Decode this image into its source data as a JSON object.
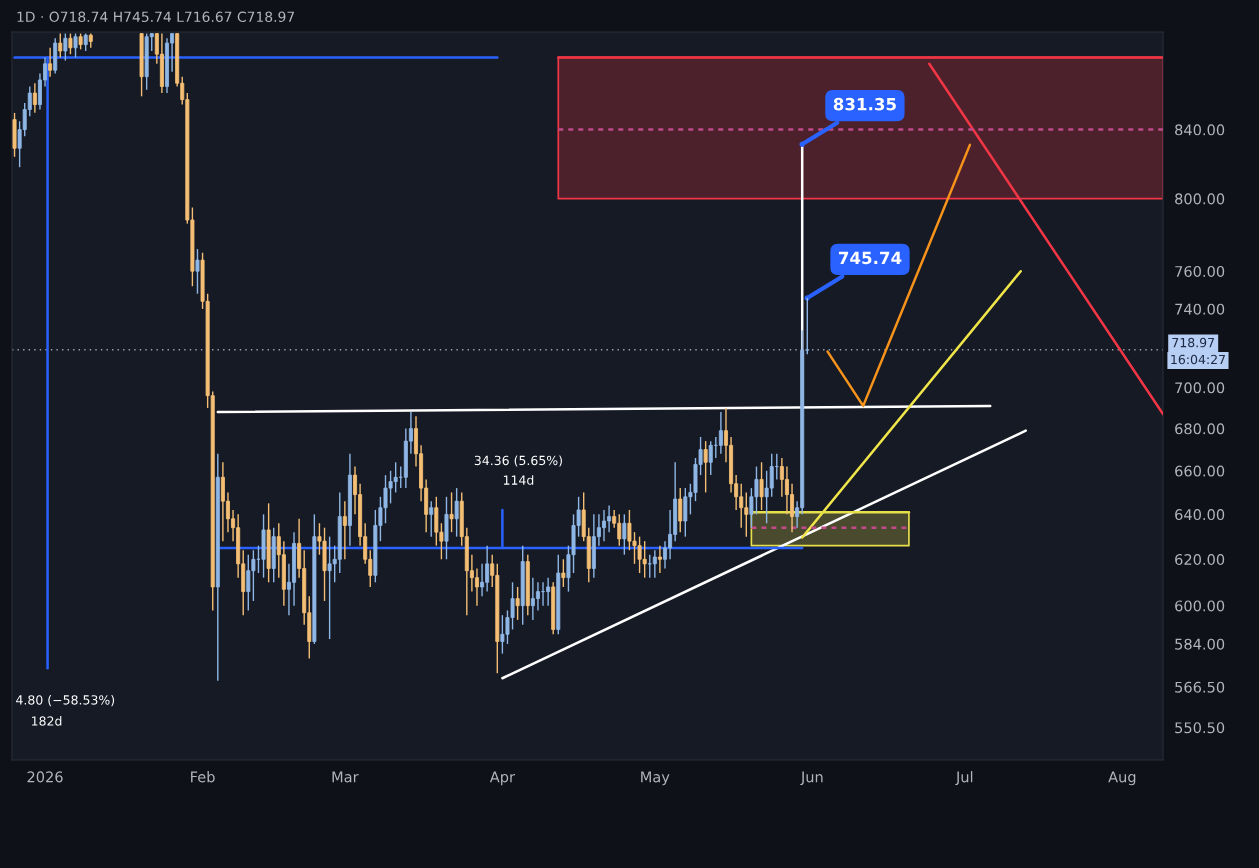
{
  "chart_data": {
    "type": "candlestick",
    "subtitle": "1D · O718.74 H745.74 L716.67 C718.97",
    "log": true,
    "grid": false,
    "xlim": [
      "2025-12-25T12:00",
      "2026-08-09"
    ],
    "xticks": [
      {
        "value": "2026-01-01",
        "label": "2026"
      },
      {
        "value": "2026-02-01",
        "label": "Feb"
      },
      {
        "value": "2026-03-01",
        "label": "Mar"
      },
      {
        "value": "2026-04-01",
        "label": "Apr"
      },
      {
        "value": "2026-05-01",
        "label": "May"
      },
      {
        "value": "2026-06-01",
        "label": "Jun"
      },
      {
        "value": "2026-07-01",
        "label": "Jul"
      },
      {
        "value": "2026-08-01",
        "label": "Aug"
      }
    ],
    "ylim": [
      538,
      900
    ],
    "yticks": [
      {
        "value": 550.5,
        "label": "550.50"
      },
      {
        "value": 566.5,
        "label": "566.50"
      },
      {
        "value": 584,
        "label": "584.00"
      },
      {
        "value": 600,
        "label": "600.00"
      },
      {
        "value": 620,
        "label": "620.00"
      },
      {
        "value": 640,
        "label": "640.00"
      },
      {
        "value": 660,
        "label": "660.00"
      },
      {
        "value": 680,
        "label": "680.00"
      },
      {
        "value": 700,
        "label": "700.00"
      },
      {
        "value": 740,
        "label": "740.00"
      },
      {
        "value": 760,
        "label": "760.00"
      },
      {
        "value": 800,
        "label": "800.00"
      },
      {
        "value": 840,
        "label": "840.00"
      }
    ],
    "x": [
      "2025-12-26",
      "2025-12-27",
      "2025-12-28",
      "2025-12-29",
      "2025-12-30",
      "2025-12-31",
      "2026-01-01",
      "2026-01-02",
      "2026-01-03",
      "2026-01-04",
      "2026-01-05",
      "2026-01-06",
      "2026-01-07",
      "2026-01-08",
      "2026-01-09",
      "2026-01-10",
      "2026-01-20",
      "2026-01-21",
      "2026-01-22",
      "2026-01-23",
      "2026-01-24",
      "2026-01-25",
      "2026-01-26",
      "2026-01-27",
      "2026-01-28",
      "2026-01-29",
      "2026-01-30",
      "2026-01-31",
      "2026-02-01",
      "2026-02-02",
      "2026-02-03",
      "2026-02-04",
      "2026-02-05",
      "2026-02-06",
      "2026-02-07",
      "2026-02-08",
      "2026-02-09",
      "2026-02-10",
      "2026-02-11",
      "2026-02-12",
      "2026-02-13",
      "2026-02-14",
      "2026-02-15",
      "2026-02-16",
      "2026-02-17",
      "2026-02-18",
      "2026-02-19",
      "2026-02-20",
      "2026-02-21",
      "2026-02-22",
      "2026-02-23",
      "2026-02-24",
      "2026-02-25",
      "2026-02-26",
      "2026-02-27",
      "2026-02-28",
      "2026-03-01",
      "2026-03-02",
      "2026-03-03",
      "2026-03-04",
      "2026-03-05",
      "2026-03-06",
      "2026-03-07",
      "2026-03-08",
      "2026-03-09",
      "2026-03-10",
      "2026-03-11",
      "2026-03-12",
      "2026-03-13",
      "2026-03-14",
      "2026-03-15",
      "2026-03-16",
      "2026-03-17",
      "2026-03-18",
      "2026-03-19",
      "2026-03-20",
      "2026-03-21",
      "2026-03-22",
      "2026-03-23",
      "2026-03-24",
      "2026-03-25",
      "2026-03-26",
      "2026-03-27",
      "2026-03-28",
      "2026-03-29",
      "2026-03-30",
      "2026-03-31",
      "2026-04-01",
      "2026-04-02",
      "2026-04-03",
      "2026-04-04",
      "2026-04-05",
      "2026-04-06",
      "2026-04-07",
      "2026-04-08",
      "2026-04-09",
      "2026-04-10",
      "2026-04-11",
      "2026-04-12",
      "2026-04-13",
      "2026-04-14",
      "2026-04-15",
      "2026-04-16",
      "2026-04-17",
      "2026-04-18",
      "2026-04-19",
      "2026-04-20",
      "2026-04-21",
      "2026-04-22",
      "2026-04-23",
      "2026-04-24",
      "2026-04-25",
      "2026-04-26",
      "2026-04-27",
      "2026-04-28",
      "2026-04-29",
      "2026-04-30",
      "2026-05-01",
      "2026-05-02",
      "2026-05-03",
      "2026-05-04",
      "2026-05-05",
      "2026-05-06",
      "2026-05-07",
      "2026-05-08",
      "2026-05-09",
      "2026-05-10",
      "2026-05-11",
      "2026-05-12",
      "2026-05-13",
      "2026-05-14",
      "2026-05-15",
      "2026-05-16",
      "2026-05-17",
      "2026-05-18",
      "2026-05-19",
      "2026-05-20",
      "2026-05-21",
      "2026-05-22",
      "2026-05-23",
      "2026-05-24",
      "2026-05-25",
      "2026-05-26",
      "2026-05-27",
      "2026-05-28",
      "2026-05-29",
      "2026-05-30",
      "2026-05-31"
    ],
    "ohlc": [
      [
        846,
        850,
        824,
        829
      ],
      [
        829,
        845,
        818,
        840
      ],
      [
        840,
        856,
        836,
        852
      ],
      [
        852,
        866,
        848,
        862
      ],
      [
        862,
        868,
        850,
        855
      ],
      [
        855,
        874,
        852,
        870
      ],
      [
        870,
        884,
        866,
        880
      ],
      [
        880,
        890,
        872,
        876
      ],
      [
        876,
        896,
        874,
        893
      ],
      [
        893,
        899,
        884,
        888
      ],
      [
        888,
        899,
        882,
        896
      ],
      [
        896,
        899,
        886,
        890
      ],
      [
        890,
        899,
        884,
        897
      ],
      [
        897,
        899,
        889,
        892
      ],
      [
        892,
        899,
        888,
        898
      ],
      [
        898,
        899,
        890,
        894
      ],
      [
        899,
        899,
        860,
        872
      ],
      [
        872,
        899,
        864,
        897
      ],
      [
        897,
        899,
        888,
        899
      ],
      [
        899,
        899,
        880,
        886
      ],
      [
        886,
        899,
        862,
        866
      ],
      [
        866,
        896,
        862,
        893
      ],
      [
        893,
        899,
        875,
        899
      ],
      [
        899,
        899,
        866,
        868
      ],
      [
        868,
        872,
        855,
        858
      ],
      [
        858,
        862,
        786,
        788
      ],
      [
        788,
        795,
        752,
        760
      ],
      [
        760,
        772,
        748,
        766
      ],
      [
        766,
        770,
        740,
        744
      ],
      [
        744,
        748,
        690,
        696
      ],
      [
        696,
        698,
        598,
        608
      ],
      [
        608,
        668,
        569,
        657
      ],
      [
        657,
        664,
        628,
        646
      ],
      [
        646,
        650,
        632,
        638
      ],
      [
        638,
        642,
        628,
        634
      ],
      [
        634,
        640,
        612,
        618
      ],
      [
        618,
        624,
        596,
        606
      ],
      [
        606,
        622,
        598,
        615
      ],
      [
        615,
        624,
        602,
        620
      ],
      [
        620,
        626,
        614,
        620
      ],
      [
        620,
        640,
        612,
        633
      ],
      [
        633,
        645,
        610,
        616
      ],
      [
        616,
        634,
        610,
        630
      ],
      [
        630,
        636,
        612,
        622
      ],
      [
        622,
        628,
        600,
        607
      ],
      [
        607,
        618,
        596,
        610
      ],
      [
        610,
        632,
        600,
        627
      ],
      [
        627,
        638,
        612,
        616
      ],
      [
        616,
        624,
        592,
        597
      ],
      [
        597,
        604,
        578,
        585
      ],
      [
        585,
        640,
        584,
        630
      ],
      [
        630,
        636,
        622,
        628
      ],
      [
        628,
        634,
        602,
        615
      ],
      [
        615,
        630,
        586,
        618
      ],
      [
        618,
        626,
        610,
        620
      ],
      [
        620,
        650,
        614,
        639
      ],
      [
        639,
        646,
        620,
        635
      ],
      [
        635,
        668,
        626,
        658
      ],
      [
        658,
        662,
        640,
        649
      ],
      [
        649,
        654,
        626,
        630
      ],
      [
        630,
        636,
        618,
        620
      ],
      [
        620,
        624,
        608,
        613
      ],
      [
        613,
        642,
        610,
        635
      ],
      [
        635,
        648,
        628,
        643
      ],
      [
        643,
        658,
        636,
        652
      ],
      [
        652,
        660,
        645,
        655
      ],
      [
        655,
        664,
        650,
        657
      ],
      [
        657,
        662,
        652,
        657
      ],
      [
        657,
        680,
        652,
        674
      ],
      [
        674,
        688,
        668,
        680
      ],
      [
        680,
        686,
        662,
        668
      ],
      [
        668,
        672,
        646,
        652
      ],
      [
        652,
        656,
        632,
        640
      ],
      [
        640,
        646,
        630,
        643
      ],
      [
        643,
        648,
        626,
        632
      ],
      [
        632,
        636,
        620,
        628
      ],
      [
        628,
        648,
        620,
        640
      ],
      [
        640,
        650,
        632,
        638
      ],
      [
        638,
        652,
        630,
        646
      ],
      [
        646,
        650,
        626,
        630
      ],
      [
        630,
        634,
        596,
        615
      ],
      [
        615,
        622,
        606,
        612
      ],
      [
        612,
        616,
        600,
        608
      ],
      [
        608,
        618,
        604,
        610
      ],
      [
        610,
        626,
        606,
        618
      ],
      [
        618,
        622,
        608,
        613
      ],
      [
        613,
        618,
        572,
        585
      ],
      [
        585,
        596,
        580,
        588
      ],
      [
        588,
        598,
        584,
        595
      ],
      [
        595,
        610,
        590,
        603
      ],
      [
        603,
        608,
        594,
        600
      ],
      [
        600,
        626,
        592,
        619
      ],
      [
        619,
        622,
        596,
        600
      ],
      [
        600,
        612,
        594,
        603
      ],
      [
        603,
        610,
        598,
        606
      ],
      [
        606,
        610,
        600,
        606
      ],
      [
        606,
        612,
        600,
        608
      ],
      [
        608,
        610,
        588,
        590
      ],
      [
        590,
        622,
        588,
        614
      ],
      [
        614,
        620,
        608,
        612
      ],
      [
        612,
        626,
        606,
        622
      ],
      [
        622,
        640,
        614,
        635
      ],
      [
        635,
        648,
        630,
        642
      ],
      [
        642,
        650,
        628,
        630
      ],
      [
        630,
        634,
        610,
        616
      ],
      [
        616,
        640,
        612,
        630
      ],
      [
        630,
        640,
        626,
        634
      ],
      [
        634,
        642,
        628,
        637
      ],
      [
        637,
        644,
        632,
        639
      ],
      [
        639,
        642,
        634,
        636
      ],
      [
        636,
        640,
        626,
        629
      ],
      [
        629,
        640,
        622,
        636
      ],
      [
        636,
        642,
        624,
        628
      ],
      [
        628,
        632,
        618,
        626
      ],
      [
        626,
        630,
        614,
        620
      ],
      [
        620,
        628,
        612,
        618
      ],
      [
        618,
        622,
        612,
        618
      ],
      [
        618,
        624,
        612,
        621
      ],
      [
        621,
        626,
        614,
        620
      ],
      [
        620,
        628,
        616,
        625
      ],
      [
        625,
        642,
        620,
        631
      ],
      [
        631,
        664,
        628,
        647
      ],
      [
        647,
        652,
        632,
        637
      ],
      [
        637,
        652,
        630,
        648
      ],
      [
        648,
        654,
        640,
        650
      ],
      [
        650,
        666,
        646,
        663
      ],
      [
        663,
        676,
        658,
        670
      ],
      [
        670,
        674,
        650,
        664
      ],
      [
        664,
        674,
        658,
        672
      ],
      [
        672,
        676,
        666,
        672
      ],
      [
        672,
        688,
        668,
        679
      ],
      [
        679,
        690,
        664,
        672
      ],
      [
        672,
        676,
        650,
        654
      ],
      [
        654,
        658,
        642,
        648
      ],
      [
        648,
        654,
        634,
        643
      ],
      [
        643,
        650,
        630,
        640
      ],
      [
        640,
        652,
        634,
        648
      ],
      [
        648,
        662,
        640,
        656
      ],
      [
        656,
        664,
        642,
        648
      ],
      [
        648,
        660,
        636,
        652
      ],
      [
        652,
        668,
        648,
        662
      ],
      [
        662,
        668,
        656,
        662
      ],
      [
        662,
        666,
        648,
        656
      ],
      [
        656,
        662,
        640,
        649
      ],
      [
        649,
        654,
        632,
        639
      ],
      [
        639,
        646,
        634,
        643
      ],
      [
        643,
        729,
        640,
        718.74
      ],
      [
        718.74,
        745.74,
        716.67,
        718.97
      ]
    ],
    "series": [
      {
        "type": "line",
        "color": "#ffffff",
        "x": [
          "2026-02-04",
          "2026-07-06"
        ],
        "values": [
          688,
          691
        ]
      },
      {
        "type": "line",
        "color": "#ffffff",
        "x": [
          "2026-04-01",
          "2026-07-13"
        ],
        "values": [
          570,
          679
        ]
      },
      {
        "type": "line",
        "color": "#f0e64a",
        "x": [
          "2026-05-30",
          "2026-07-12"
        ],
        "values": [
          629.6,
          760
        ]
      },
      {
        "type": "line",
        "color": "#f7931a",
        "x": [
          "2026-06-04",
          "2026-06-11",
          "2026-07-02"
        ],
        "values": [
          718,
          691,
          831
        ]
      },
      {
        "type": "line",
        "color": "#f23645",
        "x": [
          "2026-06-24",
          "2026-08-09"
        ],
        "values": [
          880,
          687
        ]
      },
      {
        "type": "line",
        "color": "#ffffff",
        "x": [
          "2026-05-30",
          "2026-05-30"
        ],
        "values": [
          690,
          831.35
        ]
      },
      {
        "type": "line",
        "color": "#2962ff",
        "x": [
          "2026-02-04",
          "2026-05-30"
        ],
        "values": [
          625,
          625
        ]
      },
      {
        "type": "line",
        "color": "#2962ff",
        "x": [
          "2026-04-01",
          "2026-04-01"
        ],
        "values": [
          625,
          642
        ]
      },
      {
        "type": "line",
        "color": "#2962ff",
        "x": [
          "2026-01-01T12:00",
          "2026-01-01T12:00"
        ],
        "values": [
          884,
          574
        ]
      },
      {
        "type": "line",
        "color": "#2962ff",
        "x": [
          "2025-12-26",
          "2026-03-31"
        ],
        "values": [
          884,
          884
        ]
      },
      {
        "type": "line",
        "color": "#f23645",
        "x": [
          "2026-04-12",
          "2026-08-09"
        ],
        "values": [
          884,
          884
        ],
        "lower": [
          800,
          800
        ],
        "upper": [
          884,
          884
        ]
      },
      {
        "type": "line",
        "color": "#e8e04a",
        "x": [
          "2026-05-20",
          "2026-06-20"
        ],
        "values": [
          641,
          641
        ],
        "lower": [
          626,
          626
        ],
        "upper": [
          641,
          641
        ]
      },
      {
        "type": "line",
        "color": "#c04a8a",
        "line_style": "dashed",
        "x": [
          "2026-04-12",
          "2026-08-09"
        ],
        "values": [
          840,
          840
        ]
      },
      {
        "type": "line",
        "color": "#c04a8a",
        "line_style": "dashed",
        "x": [
          "2026-05-20",
          "2026-06-20"
        ],
        "values": [
          634,
          634
        ]
      }
    ],
    "ref_lines": [
      {
        "axis": "y",
        "value": 718.97,
        "label": "718.97",
        "color": "#9aa4b8",
        "line_style": "dotted"
      }
    ],
    "annotations": [
      {
        "text": "831.35",
        "x": "2026-05-30",
        "y": 831.35
      },
      {
        "text": "745.74",
        "x": "2026-05-31",
        "y": 745.74
      },
      "34.36 (5.65%)",
      "114d",
      "4.80 (−58.53%)",
      "182d",
      "16:04:27"
    ]
  }
}
